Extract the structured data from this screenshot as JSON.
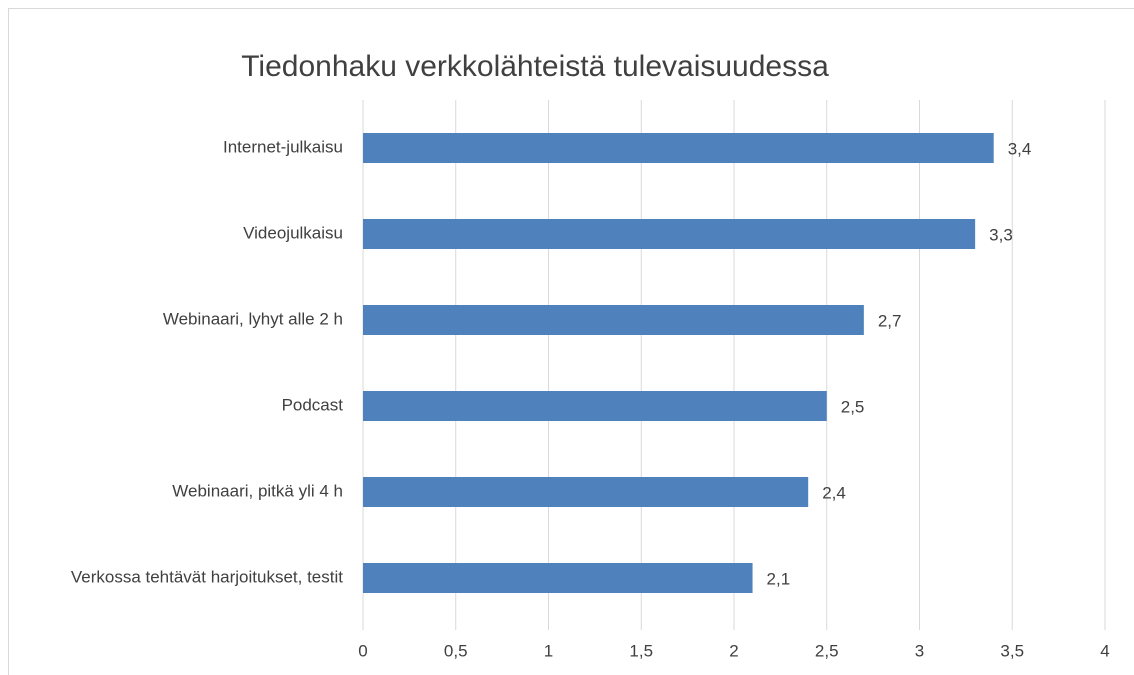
{
  "chart_data": {
    "type": "bar",
    "orientation": "horizontal",
    "title": "Tiedonhaku verkkolähteistä tulevaisuudessa",
    "categories": [
      "Internet-julkaisu",
      "Videojulkaisu",
      "Webinaari, lyhyt alle 2 h",
      "Podcast",
      "Webinaari, pitkä yli 4 h",
      "Verkossa tehtävät harjoitukset, testit"
    ],
    "values": [
      3.4,
      3.3,
      2.7,
      2.5,
      2.4,
      2.1
    ],
    "value_labels": [
      "3,4",
      "3,3",
      "2,7",
      "2,5",
      "2,4",
      "2,1"
    ],
    "color": "#4f81bd",
    "xlim": [
      0,
      4
    ],
    "xticks": [
      0,
      {
        "value": 0.5,
        "label": "0,5"
      },
      1,
      {
        "value": 1.5,
        "label": "1,5"
      },
      2,
      {
        "value": 2.5,
        "label": "2,5"
      },
      3,
      {
        "value": 3.5,
        "label": "3,5"
      },
      4
    ],
    "grid": true
  }
}
